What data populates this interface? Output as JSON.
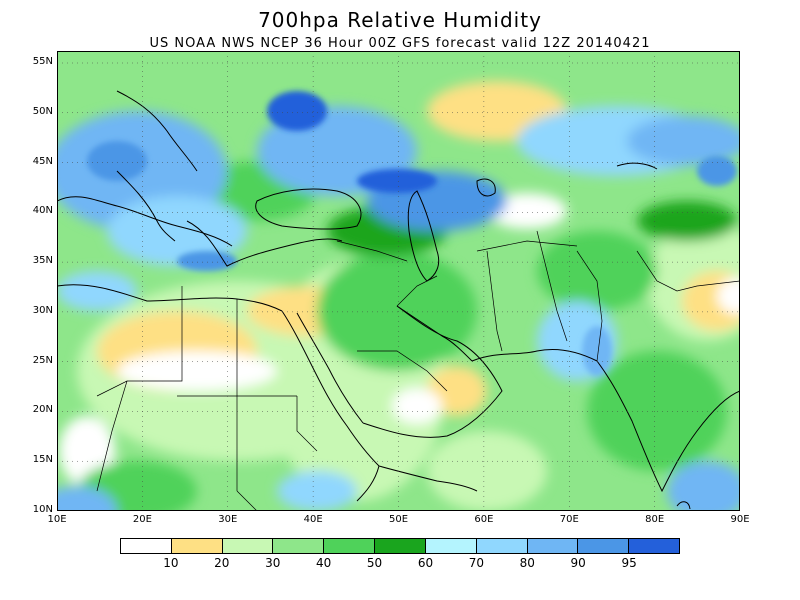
{
  "title": "700hpa Relative Humidity",
  "subtitle": "US NOAA NWS NCEP 36 Hour 00Z GFS forecast valid 12Z 20140421",
  "lat_labels": [
    "55N",
    "50N",
    "45N",
    "40N",
    "35N",
    "30N",
    "25N",
    "20N",
    "15N",
    "10N"
  ],
  "lon_labels": [
    "10E",
    "20E",
    "30E",
    "40E",
    "50E",
    "60E",
    "70E",
    "80E",
    "90E"
  ],
  "colorbar": {
    "colors": [
      "#ffffff",
      "#fee084",
      "#c8f8b4",
      "#8ee68a",
      "#4fd25a",
      "#1aa51e",
      "#b4f4fe",
      "#90d7fe",
      "#6fb6f4",
      "#4b96e6",
      "#2460da"
    ],
    "labels": [
      "10",
      "20",
      "30",
      "40",
      "50",
      "60",
      "70",
      "80",
      "90",
      "95"
    ]
  }
}
